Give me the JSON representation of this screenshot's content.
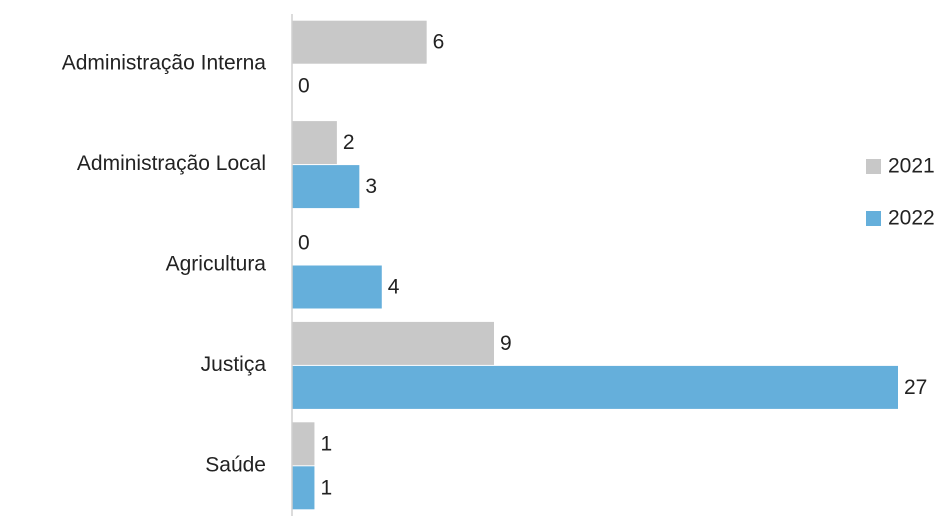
{
  "chart_data": {
    "type": "bar",
    "orientation": "horizontal",
    "categories": [
      "Administração Interna",
      "Administração Local",
      "Agricultura",
      "Justiça",
      "Saúde"
    ],
    "series": [
      {
        "name": "2021",
        "color": "#c8c8c8",
        "values": [
          6,
          2,
          0,
          9,
          1
        ]
      },
      {
        "name": "2022",
        "color": "#65afdb",
        "values": [
          0,
          3,
          4,
          27,
          1
        ]
      }
    ],
    "xlim": [
      0,
      27
    ],
    "data_labels": true,
    "grid": false,
    "legend": "right"
  }
}
